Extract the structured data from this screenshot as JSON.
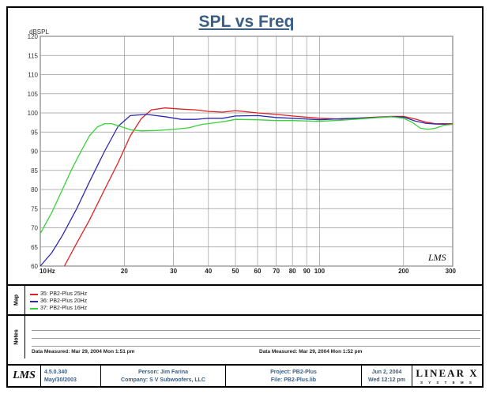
{
  "chart_data": {
    "type": "line",
    "title": "SPL vs Freq",
    "ylabel": "dBSPL",
    "xlabel": "Hz",
    "xscale": "log",
    "xlim": [
      10,
      300
    ],
    "ylim": [
      60,
      120
    ],
    "yticks": [
      60,
      65,
      70,
      75,
      80,
      85,
      90,
      95,
      100,
      105,
      110,
      115,
      120
    ],
    "xticks": [
      "10",
      "20",
      "30",
      "40",
      "50",
      "60",
      "70",
      "80",
      "90",
      "100",
      "200",
      "300"
    ],
    "xtick_values": [
      10,
      20,
      30,
      40,
      50,
      60,
      70,
      80,
      90,
      100,
      200,
      300
    ],
    "grid": true,
    "series": [
      {
        "name": "35: PB2-Plus 25Hz",
        "color": "#e02020",
        "x": [
          12.2,
          13.5,
          15,
          17,
          19,
          21,
          23,
          25,
          28,
          32,
          36,
          40,
          45,
          50,
          60,
          70,
          80,
          100,
          120,
          150,
          180,
          200,
          220,
          240,
          260,
          300
        ],
        "y": [
          60,
          66,
          72,
          80,
          87,
          94,
          98.5,
          100.8,
          101.3,
          101,
          100.8,
          100.4,
          100.2,
          100.6,
          100,
          99.6,
          99.2,
          98.6,
          98.4,
          98.8,
          99.1,
          99.1,
          98.4,
          97.6,
          97.2,
          97.2
        ]
      },
      {
        "name": "36: PB2-Plus 20Hz",
        "color": "#2a2ab5",
        "x": [
          10,
          11,
          12,
          13.5,
          15,
          17,
          19,
          21,
          24,
          28,
          32,
          36,
          40,
          45,
          50,
          60,
          70,
          80,
          100,
          120,
          150,
          180,
          200,
          220,
          240,
          260,
          300
        ],
        "y": [
          60,
          63.5,
          68,
          75,
          82,
          90,
          96.5,
          99.3,
          99.6,
          99,
          98.3,
          98.3,
          98.6,
          98.6,
          99.2,
          99.3,
          98.8,
          98.6,
          98.2,
          98.5,
          98.7,
          99,
          98.9,
          97.9,
          97.3,
          97.1,
          97
        ]
      },
      {
        "name": "37: PB2-Plus 16Hz",
        "color": "#3ad13a",
        "x": [
          10,
          11,
          12,
          13,
          14,
          15,
          16,
          17,
          18,
          19.5,
          21,
          23,
          26,
          30,
          34,
          38,
          42,
          46,
          50,
          60,
          70,
          80,
          100,
          120,
          150,
          180,
          200,
          215,
          230,
          245,
          260,
          280,
          300
        ],
        "y": [
          68.5,
          74,
          80,
          85.5,
          90,
          94,
          96.3,
          97.2,
          97.2,
          96.4,
          95.6,
          95.3,
          95.4,
          95.7,
          96.1,
          97,
          97.4,
          97.8,
          98.3,
          98.2,
          98,
          98,
          97.8,
          98.1,
          98.6,
          99,
          98.6,
          97.5,
          96,
          95.7,
          96,
          96.8,
          97
        ]
      }
    ]
  },
  "legend": {
    "section_label": "Map",
    "items": [
      {
        "label": "35: PB2-Plus 25Hz",
        "color": "#e02020"
      },
      {
        "label": "36: PB2-Plus 20Hz",
        "color": "#2a2ab5"
      },
      {
        "label": "37: PB2-Plus 16Hz",
        "color": "#3ad13a"
      }
    ]
  },
  "notes": {
    "section_label": "Notes",
    "left_date": "Data Measured: Mar 29, 2004  Mon  1:51 pm",
    "right_date": "Data Measured: Mar 29, 2004  Mon  1:52 pm"
  },
  "footer": {
    "logo": "LMS",
    "version": "4.5.0.340",
    "version_date": "May/30/2003",
    "person": "Person: Jim Farina",
    "company": "Company: S V Subwoofers, LLC",
    "project": "Project: PB2-Plus",
    "file": "File: PB2-Plus.lib",
    "date": "Jun  2, 2004",
    "time": "Wed 12:12 pm",
    "brand": "LINEAR X",
    "brand_sub": "S Y S T E M S"
  },
  "watermark": "LMS"
}
